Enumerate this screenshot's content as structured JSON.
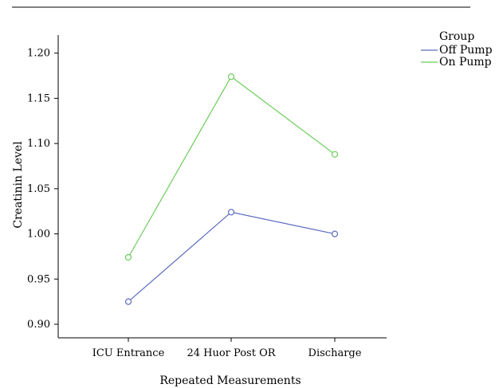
{
  "chart_data": {
    "type": "line",
    "categories": [
      "ICU Entrance",
      "24 Huor Post OR",
      "Discharge"
    ],
    "series": [
      {
        "name": "Off Pump",
        "values": [
          0.925,
          1.024,
          1.0
        ],
        "color": "#5b6bc0"
      },
      {
        "name": "On Pump",
        "values": [
          0.974,
          1.174,
          1.088
        ],
        "color": "#6ccc5c"
      }
    ],
    "title": "",
    "xlabel": "Repeated Measurements",
    "ylabel": "Creatinin Level",
    "ylim": [
      0.885,
      1.22
    ],
    "yticks": [
      "0.90",
      "0.95",
      "1.00",
      "1.05",
      "1.10",
      "1.15",
      "1.20"
    ],
    "legend": {
      "title": "Group",
      "position": "top-right"
    },
    "grid": false,
    "marker": "open-circle"
  }
}
